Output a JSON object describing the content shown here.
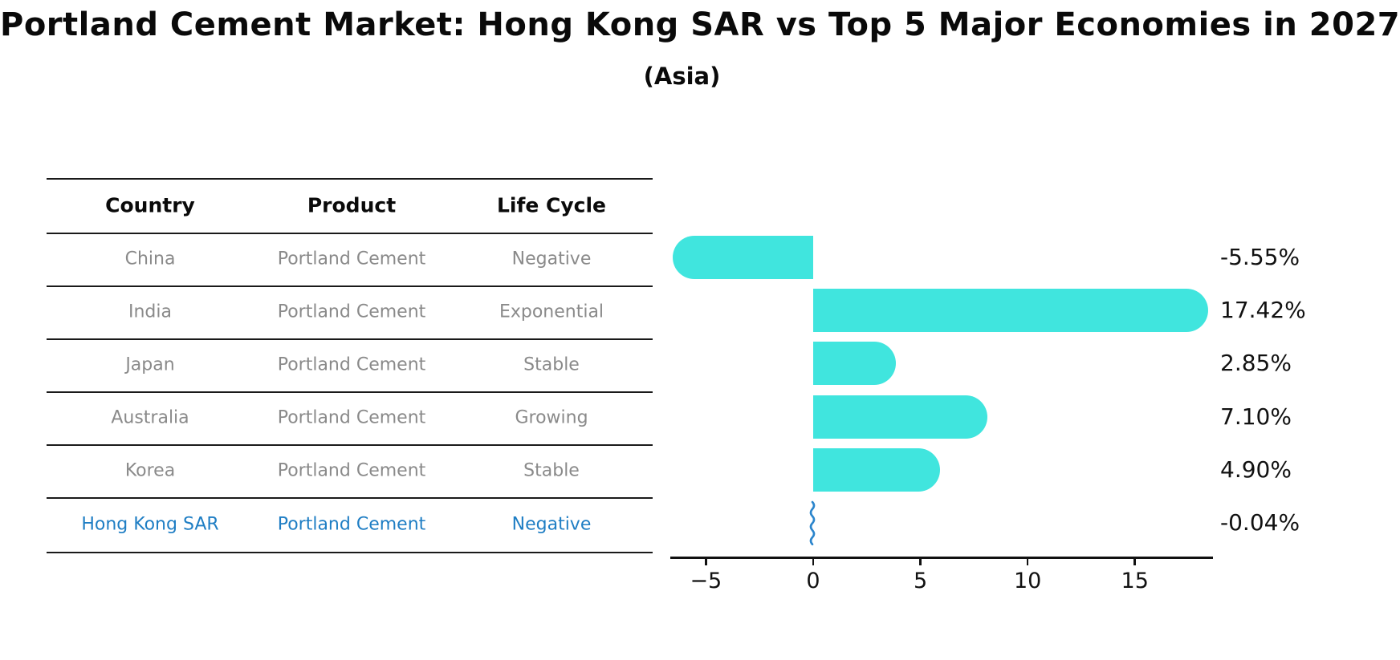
{
  "title": "Portland Cement Market: Hong Kong SAR vs Top 5 Major Economies in 2027",
  "subtitle": "(Asia)",
  "table": {
    "headers": [
      "Country",
      "Product",
      "Life Cycle"
    ],
    "rows": [
      {
        "country": "China",
        "product": "Portland Cement",
        "life_cycle": "Negative",
        "highlighted": false
      },
      {
        "country": "India",
        "product": "Portland Cement",
        "life_cycle": "Exponential",
        "highlighted": false
      },
      {
        "country": "Japan",
        "product": "Portland Cement",
        "life_cycle": "Stable",
        "highlighted": false
      },
      {
        "country": "Australia",
        "product": "Portland Cement",
        "life_cycle": "Growing",
        "highlighted": false
      },
      {
        "country": "Korea",
        "product": "Portland Cement",
        "life_cycle": "Stable",
        "highlighted": false
      },
      {
        "country": "Hong Kong SAR",
        "product": "Portland Cement",
        "life_cycle": "Negative",
        "highlighted": true
      }
    ]
  },
  "chart_data": {
    "type": "bar",
    "orientation": "horizontal",
    "title": "Portland Cement Market: Hong Kong SAR vs Top 5 Major Economies in 2027 (Asia)",
    "categories": [
      "China",
      "India",
      "Japan",
      "Australia",
      "Korea",
      "Hong Kong SAR"
    ],
    "values": [
      -5.55,
      17.42,
      2.85,
      7.1,
      4.9,
      -0.04
    ],
    "value_labels": [
      "-5.55%",
      "17.42%",
      "2.85%",
      "7.10%",
      "4.90%",
      "-0.04%"
    ],
    "xlim": [
      -6.66,
      18.64
    ],
    "xticks": [
      -5,
      0,
      5,
      10,
      15
    ],
    "xtick_labels": [
      "−5",
      "0",
      "5",
      "10",
      "15"
    ],
    "grid": false,
    "legend": false,
    "bar_color": "#40e5de",
    "highlight_color": "#2b85cc",
    "highlight_index": 5,
    "highlight_marker": "squiggle"
  },
  "colors": {
    "background": "#ffffff",
    "bar_cyan": "#40e5de",
    "highlight_blue": "#1f7ec4",
    "table_text_gray": "#8a8a8a",
    "axis_black": "#111111"
  }
}
